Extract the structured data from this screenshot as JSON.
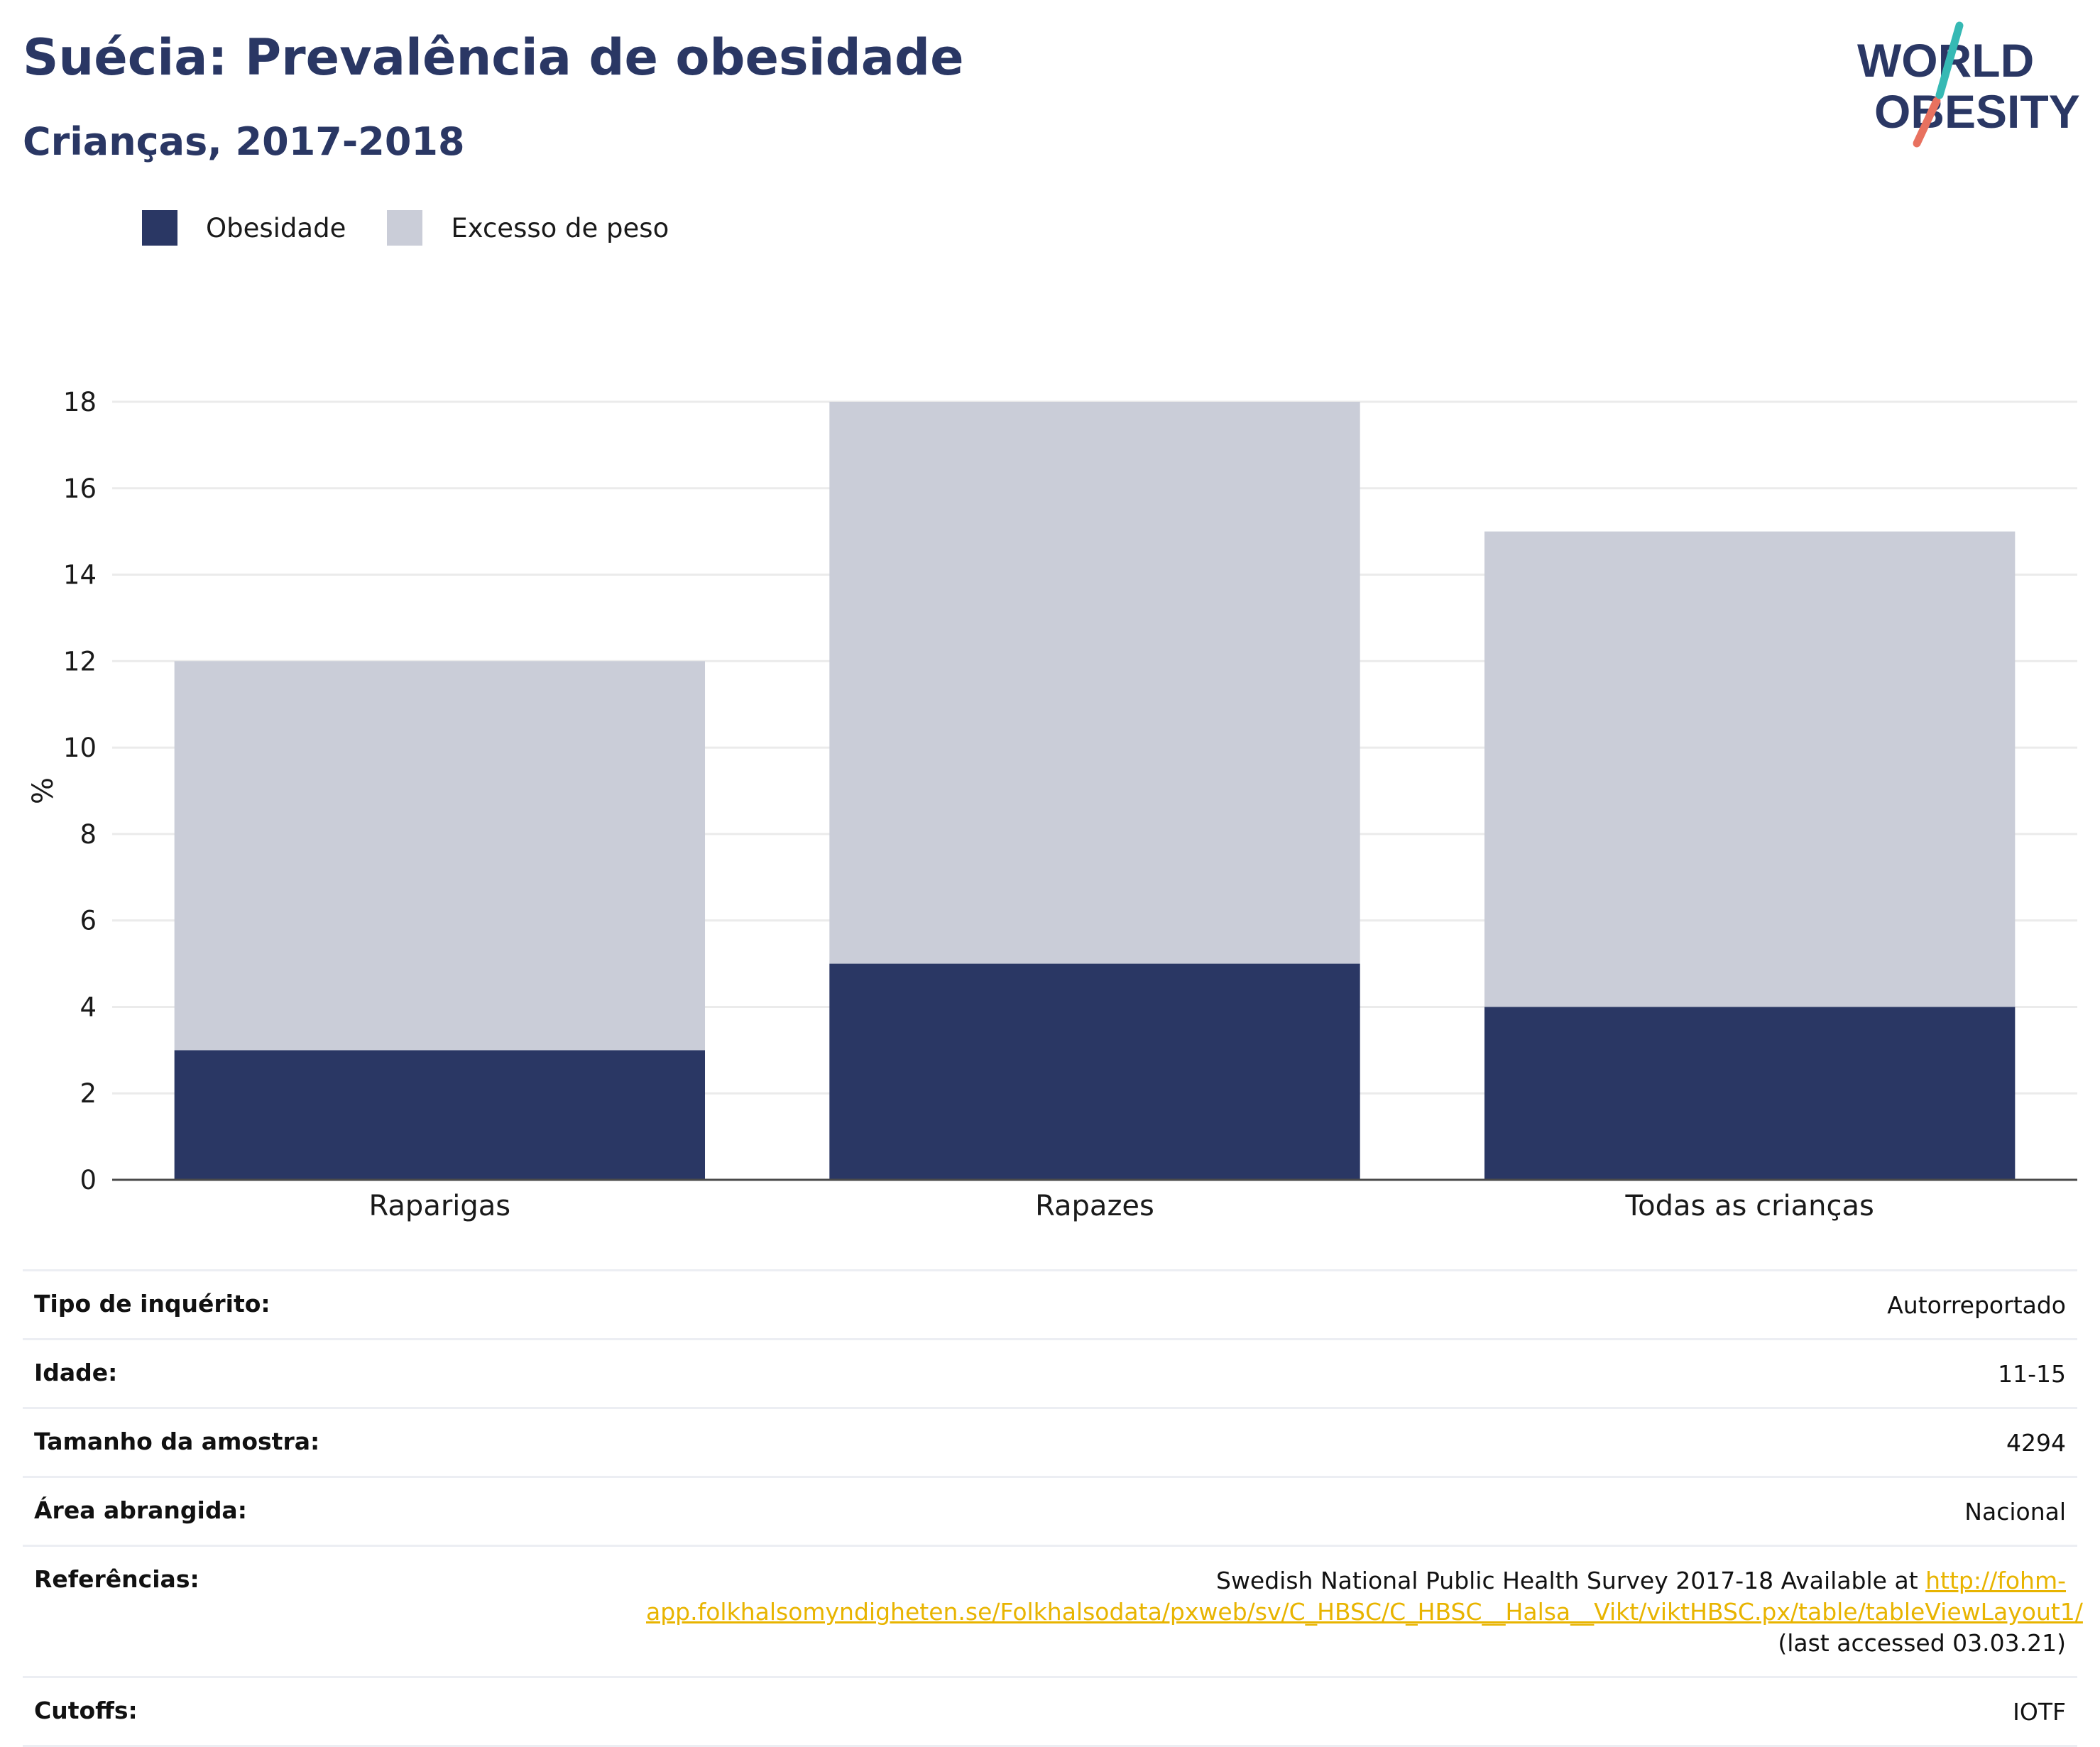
{
  "header": {
    "title": "Suécia: Prevalência de obesidade",
    "subtitle": "Crianças, 2017-2018"
  },
  "logo": {
    "line1": "WORLD",
    "line2": "OBESITY"
  },
  "legend": [
    {
      "label": "Obesidade",
      "color": "#2a3764"
    },
    {
      "label": "Excesso de peso",
      "color": "#cacdd8"
    }
  ],
  "chart_data": {
    "type": "bar",
    "stacked": true,
    "categories": [
      "Raparigas",
      "Rapazes",
      "Todas as crianças"
    ],
    "series": [
      {
        "name": "Obesidade",
        "values": [
          3,
          5,
          4
        ],
        "color": "#2a3764"
      },
      {
        "name": "Excesso de peso",
        "values": [
          9,
          13,
          11
        ],
        "color": "#cacdd8"
      }
    ],
    "ylabel": "%",
    "ylim": [
      0,
      18
    ],
    "yticks": [
      0,
      2,
      4,
      6,
      8,
      10,
      12,
      14,
      16,
      18
    ],
    "grid": true,
    "legend_position": "top-left"
  },
  "meta": {
    "rows": [
      {
        "key": "Tipo de inquérito:",
        "value": "Autorreportado"
      },
      {
        "key": "Idade:",
        "value": "11-15"
      },
      {
        "key": "Tamanho da amostra:",
        "value": "4294"
      },
      {
        "key": "Área abrangida:",
        "value": "Nacional"
      }
    ],
    "references": {
      "key": "Referências:",
      "text_before": "Swedish National Public Health Survey 2017-18 Available at ",
      "link": "http://fohm-app.folkhalsomyndigheten.se/Folkhalsodata/pxweb/sv/C_HBSC/C_HBSC__Halsa__Vikt/viktHBSC.px/table/tableViewLayout1/",
      "text_after": " (last accessed 03.03.21)"
    },
    "cutoffs": {
      "key": "Cutoffs:",
      "value": "IOTF"
    }
  }
}
